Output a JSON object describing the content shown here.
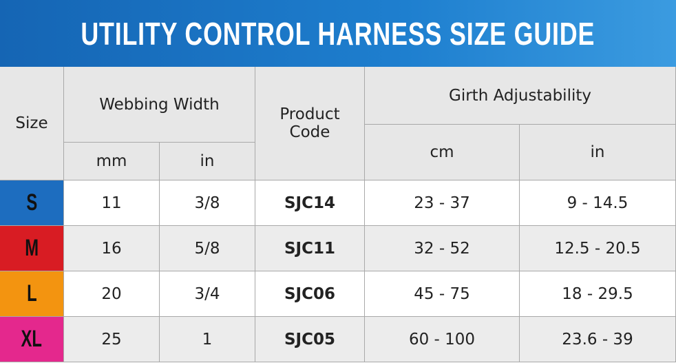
{
  "header": {
    "title": "UTILITY CONTROL HARNESS SIZE GUIDE"
  },
  "table": {
    "columns": {
      "size": "Size",
      "webbing_width": "Webbing Width",
      "mm": "mm",
      "in": "in",
      "product_code": "Product Code",
      "girth": "Girth Adjustability",
      "cm": "cm",
      "girth_in": "in"
    },
    "rows": [
      {
        "size": "S",
        "color": "#1d6dbf",
        "mm": "11",
        "in": "3/8",
        "code": "SJC14",
        "cm": "23 - 37",
        "girth_in": "9 - 14.5"
      },
      {
        "size": "M",
        "color": "#d81c23",
        "mm": "16",
        "in": "5/8",
        "code": "SJC11",
        "cm": "32 - 52",
        "girth_in": "12.5 - 20.5"
      },
      {
        "size": "L",
        "color": "#f39410",
        "mm": "20",
        "in": "3/4",
        "code": "SJC06",
        "cm": "45 - 75",
        "girth_in": "18 - 29.5"
      },
      {
        "size": "XL",
        "color": "#e4288d",
        "mm": "25",
        "in": "1",
        "code": "SJC05",
        "cm": "60 - 100",
        "girth_in": "23.6 - 39"
      }
    ]
  }
}
